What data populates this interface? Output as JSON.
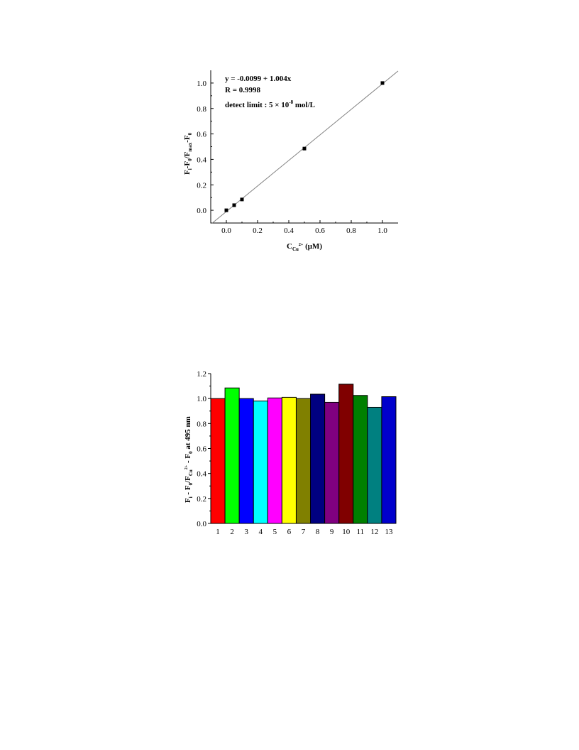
{
  "chart_data": [
    {
      "type": "scatter",
      "xlim": [
        -0.1,
        1.1
      ],
      "ylim": [
        -0.1,
        1.1
      ],
      "x_ticks": [
        0.0,
        0.2,
        0.4,
        0.6,
        0.8,
        1.0
      ],
      "y_ticks": [
        0.0,
        0.2,
        0.4,
        0.6,
        0.8,
        1.0
      ],
      "x_tick_labels": [
        "0.0",
        "0.2",
        "0.4",
        "0.6",
        "0.8",
        "1.0"
      ],
      "y_tick_labels": [
        "0.0",
        "0.2",
        "0.4",
        "0.6",
        "0.8",
        "1.0"
      ],
      "xlabel": {
        "main": "C",
        "sub": "Cu",
        "sup": "2+",
        "unit": " (μM)"
      },
      "ylabel": {
        "parts": [
          "F",
          "i",
          "-F",
          "0",
          "/F",
          "max",
          "-F",
          "0"
        ]
      },
      "points": {
        "x": [
          0.0,
          0.05,
          0.1,
          0.5,
          1.0
        ],
        "y": [
          0.0,
          0.04,
          0.085,
          0.485,
          1.0
        ]
      },
      "fit_line": {
        "intercept": -0.0099,
        "slope": 1.004
      },
      "annotations": {
        "equation": "y = -0.0099 + 1.004x",
        "r_value": "R = 0.9998",
        "detect_prefix": "detect limit : 5 × 10",
        "detect_exp": "-8",
        "detect_suffix": " mol/L"
      },
      "grid": false,
      "marker_color": "#000000",
      "line_color": "#808080"
    },
    {
      "type": "bar",
      "categories": [
        "1",
        "2",
        "3",
        "4",
        "5",
        "6",
        "7",
        "8",
        "9",
        "10",
        "11",
        "12",
        "13"
      ],
      "values": [
        1.0,
        1.085,
        1.0,
        0.98,
        1.005,
        1.01,
        1.0,
        1.035,
        0.97,
        1.115,
        1.025,
        0.93,
        1.015
      ],
      "colors": [
        "#ff0000",
        "#00ff00",
        "#0000ff",
        "#00ffff",
        "#ff00ff",
        "#ffff00",
        "#808000",
        "#000080",
        "#800080",
        "#800000",
        "#008000",
        "#008080",
        "#0000cc"
      ],
      "ylim": [
        0.0,
        1.2
      ],
      "y_ticks": [
        0.0,
        0.2,
        0.4,
        0.6,
        0.8,
        1.0,
        1.2
      ],
      "y_tick_labels": [
        "0.0",
        "0.2",
        "0.4",
        "0.6",
        "0.8",
        "1.0",
        "1.2"
      ],
      "ylabel": {
        "parts": [
          "F",
          "i",
          " - F",
          "0",
          "/F",
          "Cu",
          "2+",
          " - F",
          "0",
          " at 495 nm"
        ]
      },
      "grid": false
    }
  ]
}
